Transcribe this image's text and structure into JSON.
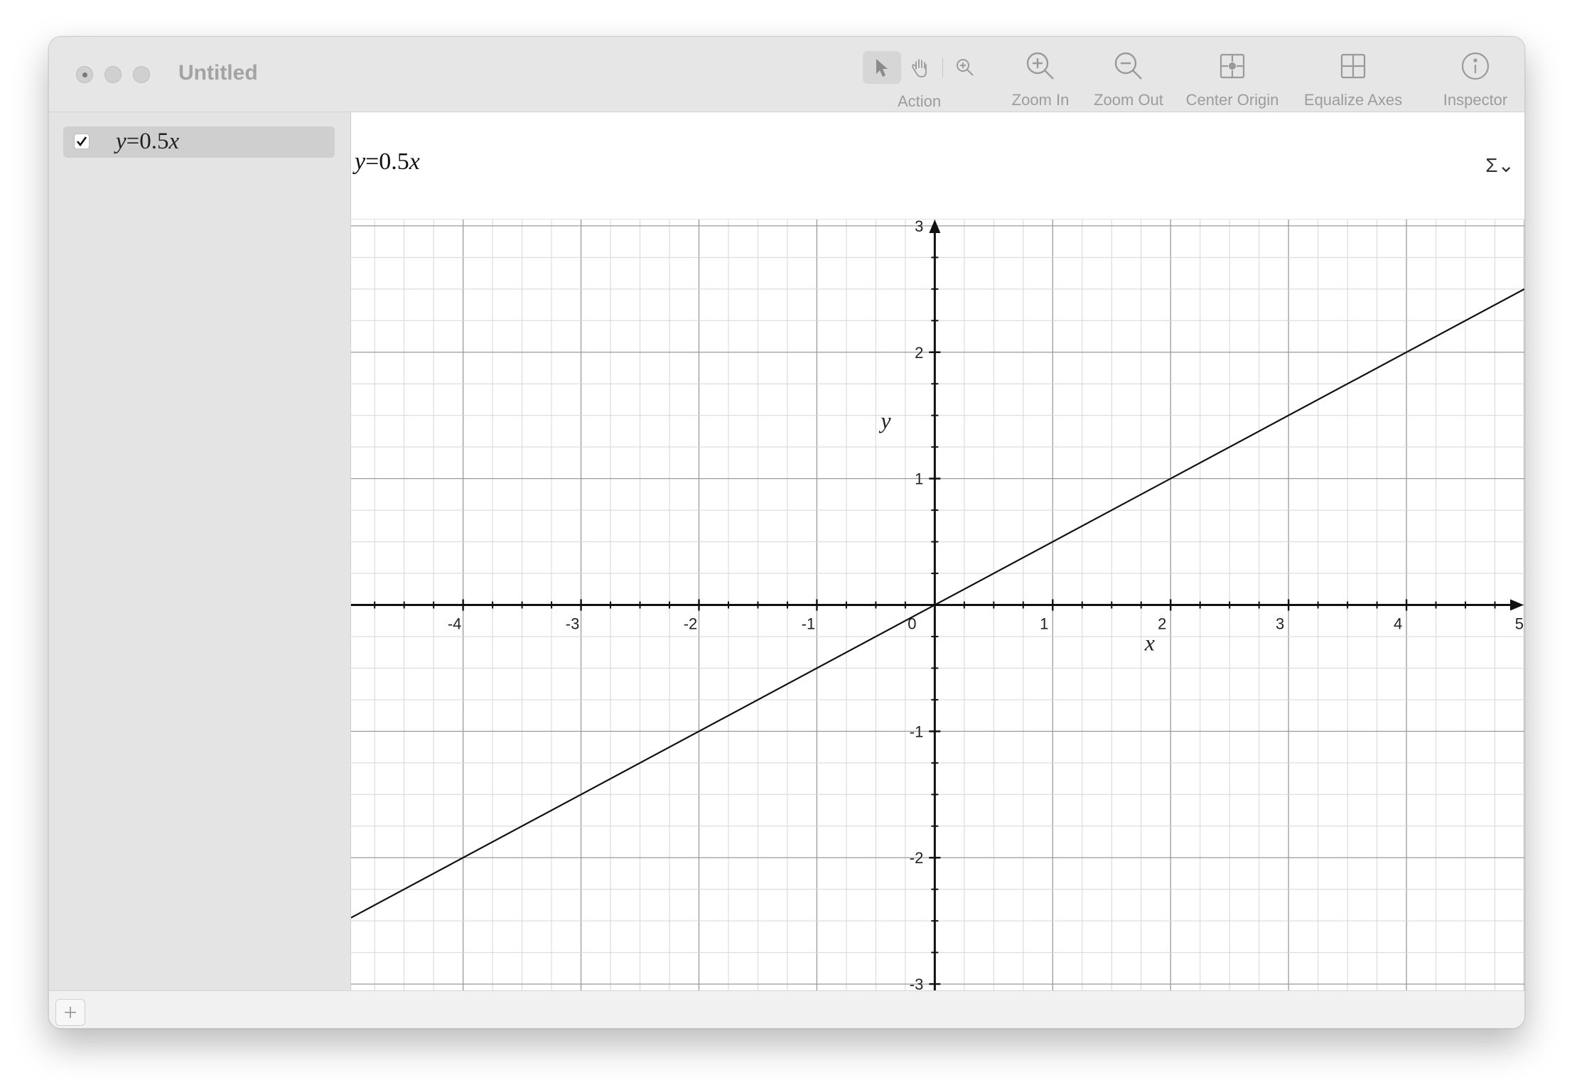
{
  "window": {
    "title": "Untitled"
  },
  "toolbar": {
    "action_label": "Action",
    "zoom_in_label": "Zoom In",
    "zoom_out_label": "Zoom Out",
    "center_origin_label": "Center Origin",
    "equalize_axes_label": "Equalize Axes",
    "inspector_label": "Inspector"
  },
  "sidebar": {
    "items": [
      {
        "var": "y",
        "eq": "=0.5",
        "var2": "x",
        "checked": true
      }
    ]
  },
  "formula": {
    "var": "y",
    "eq": "=0.5",
    "var2": "x",
    "sigma": "Σ⌄"
  },
  "chart_data": {
    "type": "line",
    "series": [
      {
        "expression": "y=0.5x",
        "x": [
          -4.95,
          5
        ],
        "y": [
          -2.475,
          2.5
        ],
        "color": "#111111"
      }
    ],
    "xlim": [
      -4.95,
      5.0
    ],
    "ylim": [
      -3.05,
      3.05
    ],
    "x_ticks": [
      -4,
      -3,
      -2,
      -1,
      0,
      1,
      2,
      3,
      4,
      5
    ],
    "y_ticks": [
      -3,
      -2,
      -1,
      1,
      2,
      3
    ],
    "xlabel": "x",
    "ylabel": "y",
    "grid": true
  },
  "colors": {
    "grid_major": "#9a9a9a",
    "grid_minor": "#d6d6d6",
    "axis": "#111111"
  }
}
